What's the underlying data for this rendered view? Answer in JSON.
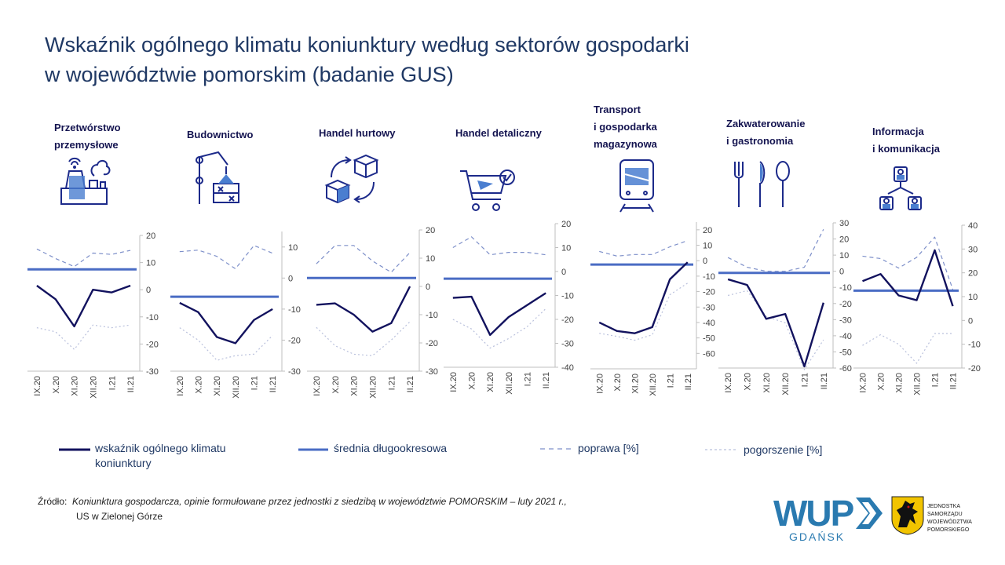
{
  "title": {
    "line1": "Wskaźnik ogólnego klimatu koniunktury według sektorów gospodarki",
    "line2": "w województwie pomorskim (badanie GUS)"
  },
  "sectors": [
    {
      "name_lines": [
        "Przetwórstwo",
        "przemysłowe"
      ],
      "icon": "factory-icon"
    },
    {
      "name_lines": [
        "Budownictwo"
      ],
      "icon": "crane-icon"
    },
    {
      "name_lines": [
        "Handel hurtowy"
      ],
      "icon": "boxes-exchange-icon"
    },
    {
      "name_lines": [
        "Handel detaliczny"
      ],
      "icon": "shopping-cart-icon"
    },
    {
      "name_lines": [
        "Transport",
        "i gospodarka",
        "magazynowa"
      ],
      "icon": "train-icon"
    },
    {
      "name_lines": [
        "Zakwaterowanie",
        "i gastronomia"
      ],
      "icon": "cutlery-icon"
    },
    {
      "name_lines": [
        "Informacja",
        "i komunikacja"
      ],
      "icon": "network-people-icon"
    }
  ],
  "legend": {
    "indicator_line1": "wskaźnik ogólnego klimatu",
    "indicator_line2": "koniunktury",
    "average": "średnia długookresowa",
    "improvement": "poprawa [%]",
    "deterioration": "pogorszenie [%]"
  },
  "source": {
    "label": "Źródło:",
    "text": "Koniunktura gospodarcza, opinie formułowane przez jednostki z siedzibą w województwie POMORSKIM – luty 2021 r.,",
    "line2": "US w Zielonej Górze"
  },
  "logos": {
    "wup_main": "WUP",
    "wup_sub": "GDAŃSK",
    "gov_text": [
      "JEDNOSTKA",
      "SAMORZĄDU",
      "WOJEWÓDZTWA",
      "POMORSKIEGO"
    ]
  },
  "colors": {
    "indicator": "#12125e",
    "average": "#4a6cc4",
    "improvement": "#7d8fc9",
    "deterioration": "#b9c0dc",
    "title": "#1f3864"
  },
  "chart_data": [
    {
      "type": "line",
      "categories": [
        "IX.20",
        "X.20",
        "XI.20",
        "XII.20",
        "I.21",
        "II.21"
      ],
      "ylim": [
        -30,
        20
      ],
      "yticks": [
        20,
        10,
        0,
        -10,
        -20,
        -30
      ],
      "series": [
        {
          "name": "wskaźnik ogólnego klimatu koniunktury",
          "values": [
            1.5,
            -3.5,
            -13.5,
            0,
            -1,
            1.5
          ]
        },
        {
          "name": "średnia długookresowa",
          "values": [
            7.5,
            7.5,
            7.5,
            7.5,
            7.5,
            7.5
          ]
        },
        {
          "name": "poprawa [%]",
          "values": [
            15,
            11.5,
            8.5,
            13.5,
            13,
            14.5
          ]
        },
        {
          "name": "pogorszenie [%]",
          "values": [
            -14,
            -15.5,
            -22,
            -13,
            -14,
            -13
          ]
        }
      ]
    },
    {
      "type": "line",
      "categories": [
        "IX.20",
        "X.20",
        "XI.20",
        "XII.20",
        "I.21",
        "II.21"
      ],
      "ylim": [
        -30,
        15
      ],
      "yticks": [
        10,
        0,
        -10,
        -20,
        -30
      ],
      "series": [
        {
          "name": "wskaźnik ogólnego klimatu koniunktury",
          "values": [
            -8,
            -11,
            -19,
            -21,
            -13.5,
            -10
          ]
        },
        {
          "name": "średnia długookresowa",
          "values": [
            -6,
            -6,
            -6,
            -6,
            -6,
            -6
          ]
        },
        {
          "name": "poprawa [%]",
          "values": [
            8.5,
            9,
            7,
            3,
            10.5,
            8
          ]
        },
        {
          "name": "pogorszenie [%]",
          "values": [
            -16,
            -20,
            -26.5,
            -25,
            -24.5,
            -18.5
          ]
        }
      ]
    },
    {
      "type": "line",
      "categories": [
        "IX.20",
        "X.20",
        "XI.20",
        "XII.20",
        "I.21",
        "II.21"
      ],
      "ylim": [
        -30,
        20
      ],
      "yticks": [
        20,
        10,
        0,
        -10,
        -20,
        -30
      ],
      "series": [
        {
          "name": "wskaźnik ogólnego klimatu koniunktury",
          "values": [
            -6.5,
            -6,
            -10,
            -16,
            -13,
            0
          ]
        },
        {
          "name": "średnia długookresowa",
          "values": [
            3,
            3,
            3,
            3,
            3,
            3
          ]
        },
        {
          "name": "poprawa [%]",
          "values": [
            8,
            14.5,
            14.5,
            9,
            5,
            12
          ]
        },
        {
          "name": "pogorszenie [%]",
          "values": [
            -14.5,
            -21,
            -24,
            -24.5,
            -19,
            -12.5
          ]
        }
      ]
    },
    {
      "type": "line",
      "categories": [
        "IX.20",
        "X.20",
        "XI.20",
        "XII.20",
        "I.21",
        "II.21"
      ],
      "ylim": [
        -40,
        20
      ],
      "yticks": [
        20,
        10,
        0,
        -10,
        -20,
        -30,
        -40
      ],
      "series": [
        {
          "name": "wskaźnik ogólnego klimatu koniunktury",
          "values": [
            -11,
            -10.5,
            -26.5,
            -19,
            -14,
            -9
          ]
        },
        {
          "name": "średnia długookresowa",
          "values": [
            -3,
            -3,
            -3,
            -3,
            -3,
            -3
          ]
        },
        {
          "name": "poprawa [%]",
          "values": [
            10,
            14.5,
            7,
            8,
            8,
            7
          ]
        },
        {
          "name": "pogorszenie [%]",
          "values": [
            -20,
            -24,
            -32,
            -28,
            -23,
            -15.5
          ]
        }
      ]
    },
    {
      "type": "line",
      "categories": [
        "IX.20",
        "X.20",
        "XI.20",
        "XII.20",
        "I.21",
        "II.21"
      ],
      "ylim": [
        -70,
        25
      ],
      "yticks": [
        20,
        10,
        0,
        -10,
        -20,
        -30,
        -40,
        -50,
        -60
      ],
      "series": [
        {
          "name": "wskaźnik ogólnego klimatu koniunktury",
          "values": [
            -40,
            -45.5,
            -47,
            -43,
            -12,
            -1
          ]
        },
        {
          "name": "średnia długookresowa",
          "values": [
            -2.5,
            -2.5,
            -2.5,
            -2.5,
            -2.5,
            -2.5
          ]
        },
        {
          "name": "poprawa [%]",
          "values": [
            6,
            3,
            4,
            4,
            9,
            13
          ]
        },
        {
          "name": "pogorszenie [%]",
          "values": [
            -47,
            -49,
            -51.5,
            -48,
            -22,
            -14.5
          ]
        }
      ]
    },
    {
      "type": "line",
      "categories": [
        "IX.20",
        "X.20",
        "XI.20",
        "XII.20",
        "I.21",
        "II.21"
      ],
      "ylim": [
        -60,
        30
      ],
      "yticks": [
        30,
        20,
        10,
        0,
        -10,
        -20,
        -30,
        -40,
        -50,
        -60
      ],
      "series": [
        {
          "name": "wskaźnik ogólnego klimatu koniunktury",
          "values": [
            -5,
            -8.5,
            -29.5,
            -26.5,
            -59,
            -19.5
          ]
        },
        {
          "name": "średnia długookresowa",
          "values": [
            -1,
            -1,
            -1,
            -1,
            -1,
            -1
          ]
        },
        {
          "name": "poprawa [%]",
          "values": [
            8.5,
            2.5,
            0,
            0,
            2.5,
            26
          ]
        },
        {
          "name": "pogorszenie [%]",
          "values": [
            -15,
            -12,
            -28,
            -32,
            -61,
            -42.5
          ]
        }
      ]
    },
    {
      "type": "line",
      "categories": [
        "IX.20",
        "X.20",
        "XI.20",
        "XII.20",
        "I.21",
        "II.21"
      ],
      "ylim": [
        -20,
        40
      ],
      "yticks": [
        40,
        30,
        20,
        10,
        0,
        -10,
        -20
      ],
      "series": [
        {
          "name": "wskaźnik ogólnego klimatu koniunktury",
          "values": [
            16.5,
            19.5,
            10.5,
            8.5,
            29.5,
            6
          ]
        },
        {
          "name": "średnia długookresowa",
          "values": [
            12.5,
            12.5,
            12.5,
            12.5,
            12.5,
            12.5
          ]
        },
        {
          "name": "poprawa [%]",
          "values": [
            27,
            26,
            22,
            26.5,
            35,
            13
          ]
        },
        {
          "name": "pogorszenie [%]",
          "values": [
            -10.5,
            -6,
            -10,
            -18,
            -5.5,
            -5.5
          ]
        }
      ]
    }
  ]
}
